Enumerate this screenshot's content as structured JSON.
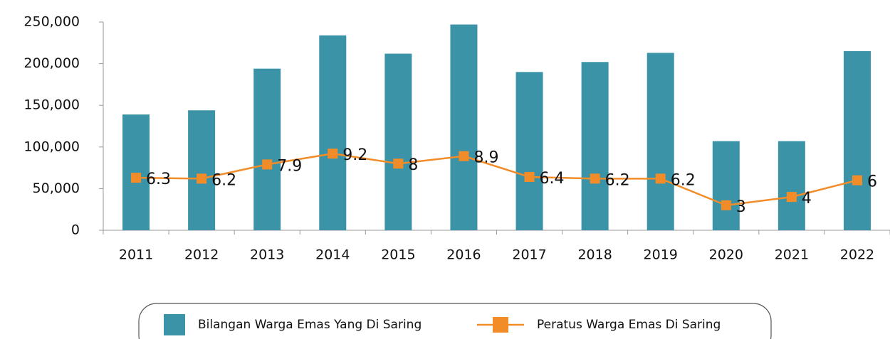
{
  "chart_data": {
    "type": "bar",
    "categories": [
      "2011",
      "2012",
      "2013",
      "2014",
      "2015",
      "2016",
      "2017",
      "2018",
      "2019",
      "2020",
      "2021",
      "2022"
    ],
    "series": [
      {
        "name": "Bilangan Warga Emas Yang Di Saring",
        "type": "bar",
        "color": "#3b93a8",
        "values": [
          139000,
          144000,
          194000,
          234000,
          212000,
          247000,
          190000,
          202000,
          213000,
          107000,
          107000,
          215000
        ]
      },
      {
        "name": "Peratus Warga Emas Di Saring",
        "type": "line",
        "axis": "y2",
        "color": "#f28c28",
        "values": [
          6.3,
          6.2,
          7.9,
          9.2,
          8,
          8.9,
          6.4,
          6.2,
          6.2,
          3,
          4,
          6
        ]
      }
    ],
    "ylim": [
      0,
      250000
    ],
    "yticks": [
      0,
      {
        "value": 50000,
        "label": "50,000"
      },
      {
        "value": 100000,
        "label": "100,000"
      },
      {
        "value": 150000,
        "label": "150,000"
      },
      {
        "value": 200000,
        "label": "200,000"
      },
      {
        "value": 250000,
        "label": "250,000"
      }
    ],
    "y2lim": [
      0,
      25
    ],
    "legend": "bottom"
  }
}
